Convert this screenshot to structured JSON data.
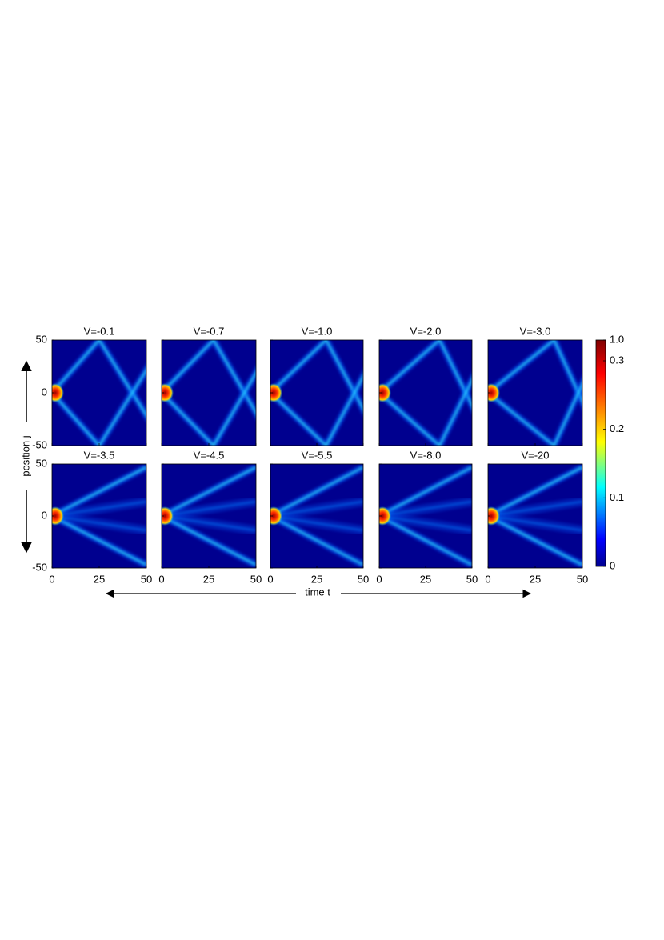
{
  "figure": {
    "x_label": "time t",
    "y_label": "position j",
    "colorbar": {
      "ticks": [
        0,
        0.1,
        0.2,
        0.3,
        {
          "value": 1,
          "label": "1.0"
        }
      ]
    }
  },
  "chart_data": [
    {
      "type": "heatmap",
      "title": "V=-0.1",
      "xlim": [
        0,
        50
      ],
      "ylim": [
        -50,
        50
      ],
      "xticks": [
        0,
        25,
        50
      ],
      "yticks": [
        -50,
        0,
        50
      ]
    },
    {
      "type": "heatmap",
      "title": "V=-0.7",
      "xlim": [
        0,
        50
      ],
      "ylim": [
        -50,
        50
      ],
      "xticks": [
        0,
        25,
        50
      ],
      "yticks": [
        -50,
        0,
        50
      ]
    },
    {
      "type": "heatmap",
      "title": "V=-1.0",
      "xlim": [
        0,
        50
      ],
      "ylim": [
        -50,
        50
      ],
      "xticks": [
        0,
        25,
        50
      ],
      "yticks": [
        -50,
        0,
        50
      ]
    },
    {
      "type": "heatmap",
      "title": "V=-2.0",
      "xlim": [
        0,
        50
      ],
      "ylim": [
        -50,
        50
      ],
      "xticks": [
        0,
        25,
        50
      ],
      "yticks": [
        -50,
        0,
        50
      ]
    },
    {
      "type": "heatmap",
      "title": "V=-3.0",
      "xlim": [
        0,
        50
      ],
      "ylim": [
        -50,
        50
      ],
      "xticks": [
        0,
        25,
        50
      ],
      "yticks": [
        -50,
        0,
        50
      ]
    },
    {
      "type": "heatmap",
      "title": "V=-3.5",
      "xlim": [
        0,
        50
      ],
      "ylim": [
        -50,
        50
      ],
      "xticks": [
        0,
        25,
        50
      ],
      "yticks": [
        -50,
        0,
        50
      ]
    },
    {
      "type": "heatmap",
      "title": "V=-4.5",
      "xlim": [
        0,
        50
      ],
      "ylim": [
        -50,
        50
      ],
      "xticks": [
        0,
        25,
        50
      ],
      "yticks": [
        -50,
        0,
        50
      ]
    },
    {
      "type": "heatmap",
      "title": "V=-5.5",
      "xlim": [
        0,
        50
      ],
      "ylim": [
        -50,
        50
      ],
      "xticks": [
        0,
        25,
        50
      ],
      "yticks": [
        -50,
        0,
        50
      ]
    },
    {
      "type": "heatmap",
      "title": "V=-8.0",
      "xlim": [
        0,
        50
      ],
      "ylim": [
        -50,
        50
      ],
      "xticks": [
        0,
        25,
        50
      ],
      "yticks": [
        -50,
        0,
        50
      ]
    },
    {
      "type": "heatmap",
      "title": "V=-20",
      "xlim": [
        0,
        50
      ],
      "ylim": [
        -50,
        50
      ],
      "xticks": [
        0,
        25,
        50
      ],
      "yticks": [
        -50,
        0,
        50
      ]
    }
  ]
}
